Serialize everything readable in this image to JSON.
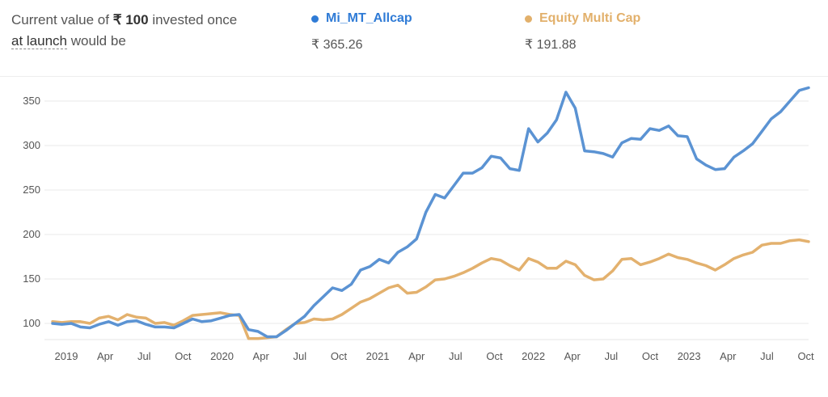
{
  "header": {
    "summary_prefix": "Current value of ",
    "summary_amount": "₹ 100",
    "summary_mid": " invested once",
    "summary_link": "at launch",
    "summary_suffix": " would be",
    "funds": [
      {
        "name": "Mi_MT_Allcap",
        "value": "₹ 365.26",
        "color": "#2f7bd6"
      },
      {
        "name": "Equity Multi Cap",
        "value": "₹ 191.88",
        "color": "#e2b06b"
      }
    ]
  },
  "chart_data": {
    "type": "line",
    "title": "",
    "xlabel": "",
    "ylabel": "",
    "ylim": [
      80,
      368
    ],
    "yticks": [
      100,
      150,
      200,
      250,
      300,
      350
    ],
    "xticks": [
      "2019",
      "Apr",
      "Jul",
      "Oct",
      "2020",
      "Apr",
      "Jul",
      "Oct",
      "2021",
      "Apr",
      "Jul",
      "Oct",
      "2022",
      "Apr",
      "Jul",
      "Oct",
      "2023",
      "Apr",
      "Jul",
      "Oct"
    ],
    "grid": true,
    "series": [
      {
        "name": "Mi_MT_Allcap",
        "color": "#5b93d3",
        "values": [
          100,
          99,
          100,
          96,
          95,
          99,
          102,
          98,
          102,
          103,
          99,
          96,
          96,
          95,
          100,
          105,
          102,
          103,
          106,
          109,
          110,
          93,
          91,
          85,
          85,
          92,
          100,
          108,
          120,
          130,
          140,
          137,
          144,
          160,
          164,
          172,
          168,
          180,
          186,
          195,
          225,
          245,
          241,
          255,
          269,
          269,
          275,
          288,
          286,
          274,
          272,
          319,
          304,
          314,
          329,
          360,
          342,
          294,
          293,
          291,
          287,
          303,
          308,
          307,
          319,
          317,
          322,
          311,
          310,
          285,
          278,
          273,
          274,
          287,
          294,
          302,
          316,
          330,
          338,
          350,
          362,
          365
        ]
      },
      {
        "name": "Equity Multi Cap",
        "color": "#e3b16e",
        "values": [
          102,
          101,
          102,
          102,
          100,
          106,
          108,
          104,
          110,
          107,
          106,
          100,
          101,
          98,
          103,
          109,
          110,
          111,
          112,
          110,
          109,
          83,
          83,
          84,
          85,
          93,
          100,
          101,
          105,
          104,
          105,
          110,
          117,
          124,
          128,
          134,
          140,
          143,
          134,
          135,
          141,
          149,
          150,
          153,
          157,
          162,
          168,
          173,
          171,
          165,
          160,
          173,
          169,
          162,
          162,
          170,
          166,
          154,
          149,
          150,
          159,
          172,
          173,
          166,
          169,
          173,
          178,
          174,
          172,
          168,
          165,
          160,
          166,
          173,
          177,
          180,
          188,
          190,
          190,
          193,
          194,
          192
        ]
      }
    ]
  }
}
